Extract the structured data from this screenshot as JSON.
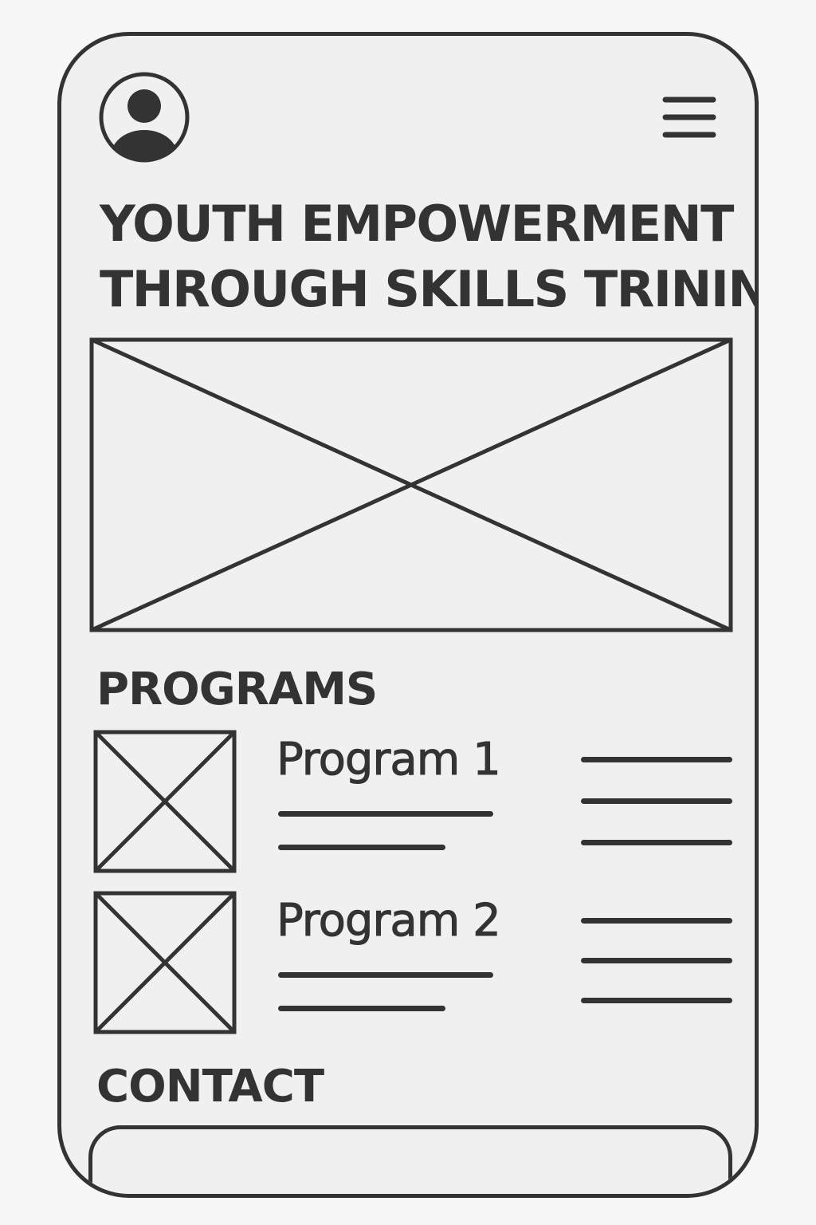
{
  "header": {
    "avatar_icon": "user-avatar-icon",
    "menu_icon": "hamburger-menu-icon"
  },
  "hero": {
    "title_line_1": "YOUTH EMPOWERMENT",
    "title_line_2": "THROUGH SKILLS TRINING",
    "image_icon": "image-placeholder-icon"
  },
  "programs": {
    "title": "PROGRAMS",
    "items": [
      {
        "name": "Program 1",
        "image_icon": "image-placeholder-icon"
      },
      {
        "name": "Program 2",
        "image_icon": "image-placeholder-icon"
      }
    ]
  },
  "contact": {
    "title": "CONTACT"
  },
  "colors": {
    "ink": "#333333",
    "surface": "#f0f0f0",
    "background": "#f7f7f7"
  }
}
